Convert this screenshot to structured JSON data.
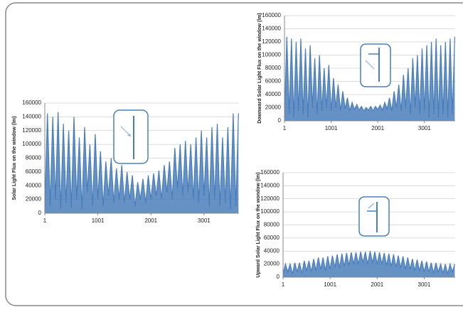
{
  "chart_data": [
    {
      "type": "area",
      "y_label": "Solar Light Flux on the window (lm)",
      "color": "#4a7ebb",
      "grid": true,
      "xlim": [
        1,
        3660
      ],
      "ylim": [
        0,
        160000
      ],
      "xticks": [
        1,
        1001,
        2001,
        3001
      ],
      "yticks": [
        0,
        20000,
        40000,
        60000,
        80000,
        100000,
        120000,
        140000,
        160000
      ],
      "x": [
        1,
        51,
        101,
        151,
        201,
        251,
        301,
        351,
        401,
        451,
        501,
        551,
        601,
        651,
        701,
        751,
        801,
        851,
        901,
        951,
        1001,
        1051,
        1101,
        1151,
        1201,
        1251,
        1301,
        1351,
        1401,
        1451,
        1501,
        1551,
        1601,
        1651,
        1701,
        1751,
        1801,
        1851,
        1901,
        1951,
        2001,
        2051,
        2101,
        2151,
        2201,
        2251,
        2301,
        2351,
        2401,
        2451,
        2501,
        2551,
        2601,
        2651,
        2701,
        2751,
        2801,
        2851,
        2901,
        2951,
        3001,
        3051,
        3101,
        3151,
        3201,
        3251,
        3301,
        3351,
        3401,
        3451,
        3501,
        3551,
        3601,
        3651
      ],
      "values": [
        5000,
        145000,
        10000,
        140000,
        20000,
        147000,
        5000,
        130000,
        15000,
        120000,
        8000,
        140000,
        20000,
        110000,
        5000,
        125000,
        30000,
        100000,
        10000,
        115000,
        20000,
        90000,
        10000,
        75000,
        25000,
        80000,
        15000,
        65000,
        20000,
        70000,
        15000,
        60000,
        20000,
        55000,
        10000,
        45000,
        20000,
        50000,
        15000,
        55000,
        20000,
        58000,
        25000,
        62000,
        20000,
        70000,
        30000,
        75000,
        20000,
        95000,
        35000,
        100000,
        25000,
        105000,
        30000,
        100000,
        20000,
        110000,
        15000,
        120000,
        25000,
        110000,
        10000,
        125000,
        20000,
        130000,
        10000,
        110000,
        15000,
        125000,
        5000,
        145000,
        10000,
        145000
      ]
    },
    {
      "type": "area",
      "y_label": "Downward Solar Light Flux on the window (lm)",
      "color": "#4a7ebb",
      "grid": true,
      "xlim": [
        1,
        3660
      ],
      "ylim": [
        0,
        160000
      ],
      "xticks": [
        1,
        1001,
        2001,
        3001
      ],
      "yticks": [
        0,
        20000,
        40000,
        60000,
        80000,
        100000,
        120000,
        140000,
        160000
      ],
      "x": [
        1,
        51,
        101,
        151,
        201,
        251,
        301,
        351,
        401,
        451,
        501,
        551,
        601,
        651,
        701,
        751,
        801,
        851,
        901,
        951,
        1001,
        1051,
        1101,
        1151,
        1201,
        1251,
        1301,
        1351,
        1401,
        1451,
        1501,
        1551,
        1601,
        1651,
        1701,
        1751,
        1801,
        1851,
        1901,
        1951,
        2001,
        2051,
        2101,
        2151,
        2201,
        2251,
        2301,
        2351,
        2401,
        2451,
        2501,
        2551,
        2601,
        2651,
        2701,
        2751,
        2801,
        2851,
        2901,
        2951,
        3001,
        3051,
        3101,
        3151,
        3201,
        3251,
        3301,
        3351,
        3401,
        3451,
        3501,
        3551,
        3601,
        3651
      ],
      "values": [
        5000,
        128000,
        10000,
        125000,
        5000,
        120000,
        15000,
        125000,
        10000,
        110000,
        5000,
        115000,
        20000,
        95000,
        10000,
        100000,
        15000,
        80000,
        20000,
        85000,
        15000,
        65000,
        20000,
        55000,
        15000,
        45000,
        18000,
        35000,
        15000,
        28000,
        17000,
        25000,
        16000,
        22000,
        15000,
        20000,
        16000,
        22000,
        15000,
        22000,
        17000,
        24000,
        16000,
        28000,
        18000,
        35000,
        15000,
        45000,
        20000,
        55000,
        15000,
        70000,
        20000,
        80000,
        10000,
        95000,
        20000,
        100000,
        10000,
        110000,
        15000,
        115000,
        5000,
        120000,
        10000,
        125000,
        5000,
        115000,
        10000,
        120000,
        5000,
        125000,
        10000,
        128000
      ]
    },
    {
      "type": "area",
      "y_label": "Upward Solar Light Flux on the wondow (lm)",
      "color": "#4a7ebb",
      "grid": true,
      "xlim": [
        1,
        3660
      ],
      "ylim": [
        0,
        160000
      ],
      "xticks": [
        1,
        1001,
        2001,
        3001
      ],
      "yticks": [
        0,
        20000,
        40000,
        60000,
        80000,
        100000,
        120000,
        140000,
        160000
      ],
      "x": [
        1,
        51,
        101,
        151,
        201,
        251,
        301,
        351,
        401,
        451,
        501,
        551,
        601,
        651,
        701,
        751,
        801,
        851,
        901,
        951,
        1001,
        1051,
        1101,
        1151,
        1201,
        1251,
        1301,
        1351,
        1401,
        1451,
        1501,
        1551,
        1601,
        1651,
        1701,
        1751,
        1801,
        1851,
        1901,
        1951,
        2001,
        2051,
        2101,
        2151,
        2201,
        2251,
        2301,
        2351,
        2401,
        2451,
        2501,
        2551,
        2601,
        2651,
        2701,
        2751,
        2801,
        2851,
        2901,
        2951,
        3001,
        3051,
        3101,
        3151,
        3201,
        3251,
        3301,
        3351,
        3401,
        3451,
        3501,
        3551,
        3601,
        3651
      ],
      "values": [
        5000,
        20000,
        8000,
        20000,
        5000,
        22000,
        8000,
        22000,
        6000,
        25000,
        10000,
        25000,
        8000,
        28000,
        10000,
        30000,
        12000,
        30000,
        10000,
        32000,
        12000,
        33000,
        15000,
        35000,
        14000,
        36000,
        16000,
        37000,
        18000,
        38000,
        20000,
        38000,
        20000,
        39000,
        22000,
        39000,
        20000,
        40000,
        22000,
        39000,
        20000,
        38000,
        20000,
        37000,
        18000,
        36000,
        16000,
        35000,
        15000,
        33000,
        14000,
        32000,
        12000,
        30000,
        12000,
        28000,
        10000,
        27000,
        10000,
        25000,
        8000,
        24000,
        8000,
        22000,
        6000,
        22000,
        8000,
        20000,
        6000,
        20000,
        5000,
        20000,
        8000,
        20000
      ]
    }
  ]
}
